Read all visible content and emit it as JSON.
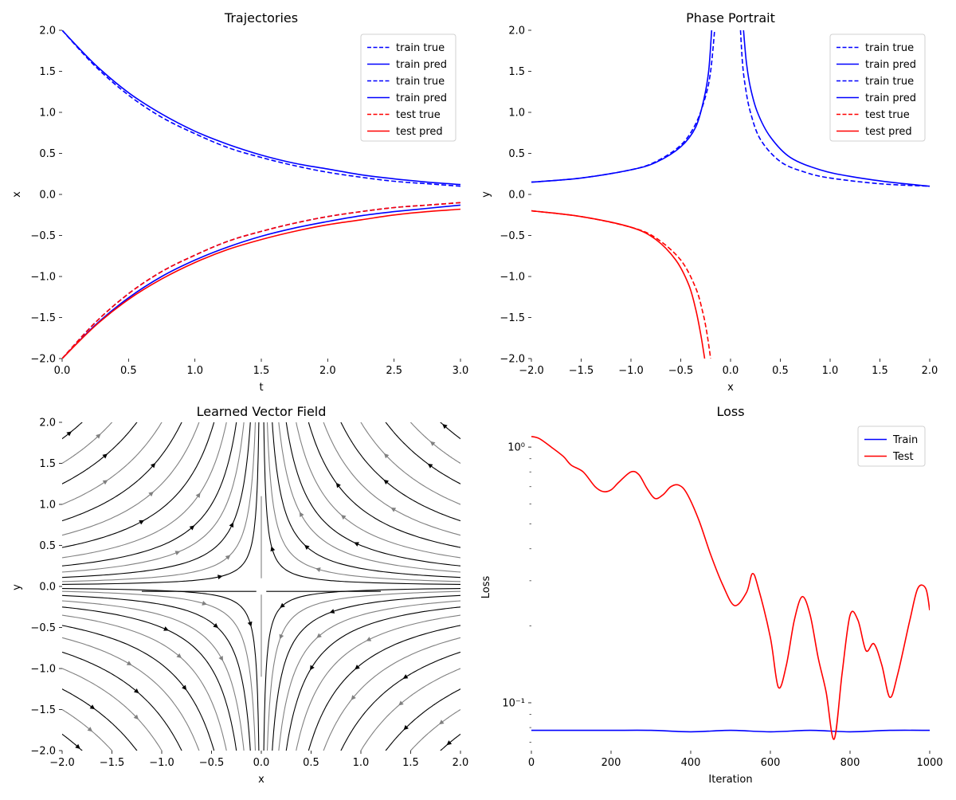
{
  "chart_data": [
    {
      "type": "line",
      "title": "Trajectories",
      "xlabel": "t",
      "ylabel": "x",
      "xlim": [
        0,
        3
      ],
      "ylim": [
        -2,
        2
      ],
      "xticks": [
        "0.0",
        "0.5",
        "1.0",
        "1.5",
        "2.0",
        "2.5",
        "3.0"
      ],
      "yticks": [
        "−2.0",
        "−1.5",
        "−1.0",
        "−0.5",
        "0.0",
        "0.5",
        "1.0",
        "1.5",
        "2.0"
      ],
      "legend": {
        "position": "top-right",
        "entries": [
          {
            "label": "train true",
            "color": "#0000ff",
            "dash": true
          },
          {
            "label": "train pred",
            "color": "#0000ff",
            "dash": false
          },
          {
            "label": "train true",
            "color": "#0000ff",
            "dash": true
          },
          {
            "label": "train pred",
            "color": "#0000ff",
            "dash": false
          },
          {
            "label": "test true",
            "color": "#ff0000",
            "dash": true
          },
          {
            "label": "test pred",
            "color": "#ff0000",
            "dash": false
          }
        ]
      },
      "series": [
        {
          "name": "train true",
          "color": "#0000ff",
          "dash": true,
          "x": [
            0,
            0.25,
            0.5,
            0.75,
            1,
            1.25,
            1.5,
            1.75,
            2,
            2.25,
            2.5,
            2.75,
            3
          ],
          "y": [
            2.0,
            1.56,
            1.21,
            0.94,
            0.74,
            0.57,
            0.45,
            0.35,
            0.27,
            0.21,
            0.16,
            0.13,
            0.1
          ]
        },
        {
          "name": "train pred",
          "color": "#0000ff",
          "dash": false,
          "x": [
            0,
            0.25,
            0.5,
            0.75,
            1,
            1.25,
            1.5,
            1.75,
            2,
            2.25,
            2.5,
            2.75,
            3
          ],
          "y": [
            2.0,
            1.58,
            1.24,
            0.98,
            0.77,
            0.61,
            0.48,
            0.38,
            0.31,
            0.24,
            0.19,
            0.15,
            0.12
          ]
        },
        {
          "name": "train true",
          "color": "#0000ff",
          "dash": true,
          "x": [
            0,
            0.25,
            0.5,
            0.75,
            1,
            1.25,
            1.5,
            1.75,
            2,
            2.25,
            2.5,
            2.75,
            3
          ],
          "y": [
            -2.0,
            -1.56,
            -1.21,
            -0.94,
            -0.74,
            -0.57,
            -0.45,
            -0.35,
            -0.27,
            -0.21,
            -0.16,
            -0.13,
            -0.1
          ]
        },
        {
          "name": "train pred",
          "color": "#0000ff",
          "dash": false,
          "x": [
            0,
            0.25,
            0.5,
            0.75,
            1,
            1.25,
            1.5,
            1.75,
            2,
            2.25,
            2.5,
            2.75,
            3
          ],
          "y": [
            -2.0,
            -1.59,
            -1.26,
            -1.0,
            -0.8,
            -0.64,
            -0.51,
            -0.41,
            -0.33,
            -0.26,
            -0.21,
            -0.17,
            -0.13
          ]
        },
        {
          "name": "test true",
          "color": "#ff0000",
          "dash": true,
          "x": [
            0,
            0.25,
            0.5,
            0.75,
            1,
            1.25,
            1.5,
            1.75,
            2,
            2.25,
            2.5,
            2.75,
            3
          ],
          "y": [
            -2.0,
            -1.56,
            -1.21,
            -0.94,
            -0.74,
            -0.57,
            -0.45,
            -0.35,
            -0.27,
            -0.21,
            -0.16,
            -0.13,
            -0.1
          ]
        },
        {
          "name": "test pred",
          "color": "#ff0000",
          "dash": false,
          "x": [
            0,
            0.25,
            0.5,
            0.75,
            1,
            1.25,
            1.5,
            1.75,
            2,
            2.25,
            2.5,
            2.75,
            3
          ],
          "y": [
            -2.0,
            -1.6,
            -1.28,
            -1.03,
            -0.83,
            -0.67,
            -0.55,
            -0.45,
            -0.37,
            -0.31,
            -0.25,
            -0.21,
            -0.18
          ]
        }
      ]
    },
    {
      "type": "line",
      "title": "Phase Portrait",
      "xlabel": "x",
      "ylabel": "y",
      "xlim": [
        -2,
        2
      ],
      "ylim": [
        -2,
        2
      ],
      "xticks": [
        "−2.0",
        "−1.5",
        "−1.0",
        "−0.5",
        "0.0",
        "0.5",
        "1.0",
        "1.5",
        "2.0"
      ],
      "yticks": [
        "−2.0",
        "−1.5",
        "−1.0",
        "−0.5",
        "0.0",
        "0.5",
        "1.0",
        "1.5",
        "2.0"
      ],
      "legend": {
        "position": "top-right",
        "entries": [
          {
            "label": "train true",
            "color": "#0000ff",
            "dash": true
          },
          {
            "label": "train pred",
            "color": "#0000ff",
            "dash": false
          },
          {
            "label": "train true",
            "color": "#0000ff",
            "dash": true
          },
          {
            "label": "train pred",
            "color": "#0000ff",
            "dash": false
          },
          {
            "label": "test true",
            "color": "#ff0000",
            "dash": true
          },
          {
            "label": "test pred",
            "color": "#ff0000",
            "dash": false
          }
        ]
      },
      "series": [
        {
          "name": "train true",
          "color": "#0000ff",
          "dash": true,
          "x": [
            -2,
            -1.5,
            -1,
            -0.75,
            -0.5,
            -0.35,
            -0.25,
            -0.2,
            -0.16
          ],
          "y": [
            0.15,
            0.2,
            0.3,
            0.4,
            0.6,
            0.86,
            1.2,
            1.5,
            2.0
          ]
        },
        {
          "name": "train pred",
          "color": "#0000ff",
          "dash": false,
          "x": [
            -2,
            -1.5,
            -1,
            -0.75,
            -0.5,
            -0.35,
            -0.27,
            -0.22,
            -0.19
          ],
          "y": [
            0.15,
            0.2,
            0.3,
            0.39,
            0.58,
            0.82,
            1.15,
            1.5,
            2.0
          ]
        },
        {
          "name": "train true",
          "color": "#0000ff",
          "dash": true,
          "x": [
            0.1,
            0.12,
            0.15,
            0.2,
            0.3,
            0.5,
            0.75,
            1,
            1.5,
            2
          ],
          "y": [
            2.0,
            1.6,
            1.3,
            1.0,
            0.67,
            0.4,
            0.27,
            0.2,
            0.13,
            0.1
          ]
        },
        {
          "name": "train pred",
          "color": "#0000ff",
          "dash": false,
          "x": [
            0.13,
            0.16,
            0.2,
            0.27,
            0.4,
            0.6,
            0.9,
            1.2,
            1.6,
            2
          ],
          "y": [
            2.0,
            1.6,
            1.3,
            1.0,
            0.7,
            0.45,
            0.3,
            0.22,
            0.15,
            0.1
          ]
        },
        {
          "name": "test true",
          "color": "#ff0000",
          "dash": true,
          "x": [
            -2,
            -1.5,
            -1,
            -0.75,
            -0.5,
            -0.35,
            -0.28,
            -0.24,
            -0.2
          ],
          "y": [
            -0.2,
            -0.27,
            -0.4,
            -0.53,
            -0.8,
            -1.14,
            -1.43,
            -1.67,
            -2.0
          ]
        },
        {
          "name": "test pred",
          "color": "#ff0000",
          "dash": false,
          "x": [
            -2,
            -1.5,
            -1,
            -0.75,
            -0.55,
            -0.42,
            -0.35,
            -0.3,
            -0.26
          ],
          "y": [
            -0.2,
            -0.27,
            -0.4,
            -0.55,
            -0.8,
            -1.1,
            -1.4,
            -1.7,
            -2.0
          ]
        }
      ]
    },
    {
      "type": "streamplot",
      "title": "Learned Vector Field",
      "xlabel": "x",
      "ylabel": "y",
      "xlim": [
        -2,
        2
      ],
      "ylim": [
        -2,
        2
      ],
      "xticks": [
        "−2.0",
        "−1.5",
        "−1.0",
        "−0.5",
        "0.0",
        "0.5",
        "1.0",
        "1.5",
        "2.0"
      ],
      "yticks": [
        "−2.0",
        "−1.5",
        "−1.0",
        "−0.5",
        "0.0",
        "0.5",
        "1.0",
        "1.5",
        "2.0"
      ],
      "field": "saddle: dx/dt = -x, dy/dt = y",
      "colors": {
        "strong": "#000000",
        "weak": "#808080"
      }
    },
    {
      "type": "line",
      "title": "Loss",
      "xlabel": "Iteration",
      "ylabel": "Loss",
      "xlim": [
        0,
        1000
      ],
      "yscale": "log",
      "ylim": [
        0.065,
        1.25
      ],
      "xticks": [
        "0",
        "200",
        "400",
        "600",
        "800",
        "1000"
      ],
      "yticks": [
        "10⁰",
        "10⁻¹"
      ],
      "legend": {
        "position": "top-right",
        "entries": [
          {
            "label": "Train",
            "color": "#0000ff",
            "dash": false
          },
          {
            "label": "Test",
            "color": "#ff0000",
            "dash": false
          }
        ]
      },
      "series": [
        {
          "name": "Train",
          "color": "#0000ff",
          "x": [
            0,
            100,
            200,
            300,
            400,
            500,
            600,
            700,
            800,
            900,
            1000
          ],
          "y": [
            0.078,
            0.078,
            0.078,
            0.078,
            0.077,
            0.078,
            0.077,
            0.078,
            0.077,
            0.078,
            0.078
          ]
        },
        {
          "name": "Test",
          "color": "#ff0000",
          "x": [
            0,
            20,
            50,
            80,
            100,
            130,
            160,
            180,
            200,
            220,
            250,
            270,
            290,
            310,
            330,
            350,
            370,
            390,
            420,
            450,
            480,
            510,
            540,
            555,
            570,
            600,
            620,
            640,
            660,
            680,
            700,
            720,
            740,
            760,
            780,
            800,
            820,
            840,
            860,
            880,
            900,
            920,
            950,
            970,
            990,
            1000
          ],
          "y": [
            1.1,
            1.08,
            1.0,
            0.92,
            0.85,
            0.8,
            0.7,
            0.67,
            0.68,
            0.73,
            0.8,
            0.78,
            0.69,
            0.63,
            0.65,
            0.7,
            0.71,
            0.66,
            0.52,
            0.38,
            0.29,
            0.24,
            0.27,
            0.32,
            0.28,
            0.18,
            0.115,
            0.14,
            0.21,
            0.26,
            0.22,
            0.15,
            0.11,
            0.072,
            0.13,
            0.22,
            0.21,
            0.16,
            0.17,
            0.14,
            0.105,
            0.13,
            0.21,
            0.28,
            0.28,
            0.23
          ]
        }
      ]
    }
  ]
}
